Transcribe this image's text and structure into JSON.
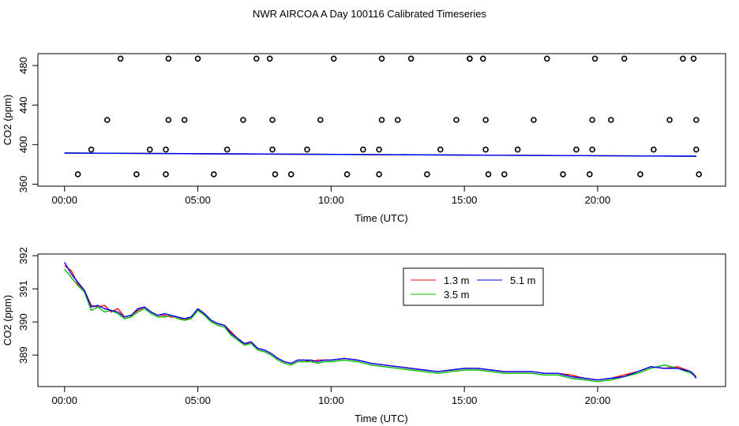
{
  "title": "NWR AIRCOA A  Day 100116  Calibrated Timeseries",
  "chart_data": [
    {
      "type": "scatter",
      "panel": "top",
      "xlabel": "Time (UTC)",
      "ylabel": "CO2 (ppm)",
      "xlim": [
        -1.0,
        24.8
      ],
      "ylim": [
        358,
        492
      ],
      "xticks": [
        0,
        5,
        10,
        15,
        20
      ],
      "xtick_labels": [
        "00:00",
        "05:00",
        "10:00",
        "15:00",
        "20:00"
      ],
      "yticks": [
        360,
        400,
        440,
        480
      ],
      "ytick_labels": [
        "360",
        "400",
        "440",
        "480"
      ],
      "calibration_points": {
        "marker": "open-circle",
        "points": [
          [
            0.5,
            370
          ],
          [
            1.0,
            395
          ],
          [
            1.6,
            425
          ],
          [
            2.1,
            487
          ],
          [
            2.7,
            370
          ],
          [
            3.2,
            395
          ],
          [
            3.8,
            370
          ],
          [
            3.8,
            395
          ],
          [
            3.9,
            425
          ],
          [
            3.9,
            487
          ],
          [
            4.5,
            425
          ],
          [
            5.0,
            487
          ],
          [
            5.6,
            370
          ],
          [
            6.1,
            395
          ],
          [
            6.7,
            425
          ],
          [
            7.2,
            487
          ],
          [
            7.7,
            487
          ],
          [
            7.8,
            425
          ],
          [
            7.8,
            395
          ],
          [
            7.9,
            370
          ],
          [
            8.5,
            370
          ],
          [
            9.1,
            395
          ],
          [
            9.6,
            425
          ],
          [
            10.1,
            487
          ],
          [
            10.6,
            370
          ],
          [
            11.2,
            395
          ],
          [
            11.8,
            370
          ],
          [
            11.8,
            395
          ],
          [
            11.9,
            425
          ],
          [
            11.9,
            487
          ],
          [
            12.5,
            425
          ],
          [
            13.0,
            487
          ],
          [
            13.6,
            370
          ],
          [
            14.1,
            395
          ],
          [
            14.7,
            425
          ],
          [
            15.2,
            487
          ],
          [
            15.2,
            487
          ],
          [
            15.7,
            487
          ],
          [
            15.8,
            425
          ],
          [
            15.8,
            395
          ],
          [
            15.9,
            370
          ],
          [
            16.5,
            370
          ],
          [
            17.0,
            395
          ],
          [
            17.6,
            425
          ],
          [
            18.1,
            487
          ],
          [
            18.7,
            370
          ],
          [
            19.2,
            395
          ],
          [
            19.7,
            370
          ],
          [
            19.8,
            395
          ],
          [
            19.8,
            425
          ],
          [
            19.9,
            487
          ],
          [
            20.5,
            425
          ],
          [
            21.0,
            487
          ],
          [
            21.6,
            370
          ],
          [
            22.1,
            395
          ],
          [
            22.7,
            425
          ],
          [
            23.2,
            487
          ],
          [
            23.6,
            487
          ],
          [
            23.7,
            425
          ],
          [
            23.7,
            395
          ],
          [
            23.8,
            370
          ]
        ]
      },
      "series": [
        {
          "name": "1.3 m",
          "color": "#ff0000",
          "x": [
            0,
            23.7
          ],
          "values": [
            391.5,
            388.3
          ]
        },
        {
          "name": "3.5 m",
          "color": "#00bb00",
          "x": [
            0,
            23.7
          ],
          "values": [
            391.5,
            388.3
          ]
        },
        {
          "name": "5.1 m",
          "color": "#0000ff",
          "x": [
            0,
            23.7
          ],
          "values": [
            391.5,
            388.3
          ]
        }
      ]
    },
    {
      "type": "line",
      "panel": "bottom",
      "xlabel": "Time (UTC)",
      "ylabel": "CO2 (ppm)",
      "xlim": [
        -1.0,
        24.8
      ],
      "ylim": [
        388.05,
        392.05
      ],
      "xticks": [
        0,
        5,
        10,
        15,
        20
      ],
      "xtick_labels": [
        "00:00",
        "05:00",
        "10:00",
        "15:00",
        "20:00"
      ],
      "yticks": [
        389,
        390,
        391,
        392
      ],
      "ytick_labels": [
        "389",
        "390",
        "391",
        "392"
      ],
      "legend": {
        "position": "top-right",
        "entries": [
          "1.3 m",
          "3.5 m",
          "5.1 m"
        ]
      },
      "x": [
        0,
        0.25,
        0.5,
        0.75,
        1,
        1.25,
        1.5,
        1.75,
        2,
        2.25,
        2.5,
        2.75,
        3,
        3.25,
        3.5,
        3.75,
        4,
        4.25,
        4.5,
        4.75,
        5,
        5.25,
        5.5,
        5.75,
        6,
        6.25,
        6.5,
        6.75,
        7,
        7.25,
        7.5,
        7.75,
        8,
        8.25,
        8.5,
        8.75,
        9,
        9.25,
        9.5,
        9.75,
        10,
        10.5,
        11,
        11.5,
        12,
        12.5,
        13,
        13.5,
        14,
        14.5,
        15,
        15.5,
        16,
        16.5,
        17,
        17.5,
        18,
        18.5,
        19,
        19.5,
        20,
        20.5,
        21,
        21.5,
        22,
        22.5,
        23,
        23.5,
        23.7
      ],
      "series": [
        {
          "name": "1.3 m",
          "color": "#ff0000",
          "values": [
            391.7,
            391.55,
            391.15,
            390.95,
            390.5,
            390.45,
            390.5,
            390.3,
            390.4,
            390.15,
            390.2,
            390.35,
            390.45,
            390.3,
            390.2,
            390.2,
            390.15,
            390.15,
            390.05,
            390.15,
            390.38,
            390.25,
            390.05,
            389.95,
            389.9,
            389.7,
            389.5,
            389.3,
            389.4,
            389.2,
            389.15,
            389.05,
            388.9,
            388.8,
            388.75,
            388.85,
            388.85,
            388.8,
            388.85,
            388.85,
            388.85,
            388.9,
            388.85,
            388.75,
            388.7,
            388.65,
            388.6,
            388.55,
            388.5,
            388.55,
            388.6,
            388.6,
            388.55,
            388.5,
            388.5,
            388.5,
            388.45,
            388.45,
            388.4,
            388.3,
            388.25,
            388.3,
            388.4,
            388.5,
            388.65,
            388.6,
            388.65,
            388.5,
            388.35
          ]
        },
        {
          "name": "3.5 m",
          "color": "#00bb00",
          "values": [
            391.6,
            391.35,
            391.1,
            390.9,
            390.35,
            390.45,
            390.3,
            390.35,
            390.25,
            390.1,
            390.15,
            390.3,
            390.4,
            390.25,
            390.15,
            390.15,
            390.2,
            390.1,
            390.05,
            390.1,
            390.35,
            390.2,
            390.0,
            389.9,
            389.85,
            389.6,
            389.45,
            389.3,
            389.35,
            389.15,
            389.1,
            389.0,
            388.85,
            388.75,
            388.7,
            388.8,
            388.8,
            388.8,
            388.75,
            388.8,
            388.8,
            388.85,
            388.8,
            388.7,
            388.65,
            388.6,
            388.55,
            388.5,
            388.45,
            388.5,
            388.55,
            388.55,
            388.5,
            388.45,
            388.45,
            388.45,
            388.4,
            388.4,
            388.3,
            388.25,
            388.2,
            388.25,
            388.35,
            388.45,
            388.6,
            388.7,
            388.6,
            388.45,
            388.35
          ]
        },
        {
          "name": "5.1 m",
          "color": "#0000ff",
          "values": [
            391.8,
            391.45,
            391.2,
            390.95,
            390.45,
            390.5,
            390.4,
            390.35,
            390.3,
            390.15,
            390.2,
            390.4,
            390.45,
            390.3,
            390.2,
            390.25,
            390.2,
            390.15,
            390.1,
            390.15,
            390.4,
            390.25,
            390.05,
            389.95,
            389.9,
            389.65,
            389.5,
            389.35,
            389.4,
            389.2,
            389.15,
            389.05,
            388.9,
            388.8,
            388.75,
            388.85,
            388.85,
            388.85,
            388.8,
            388.85,
            388.85,
            388.9,
            388.85,
            388.75,
            388.7,
            388.65,
            388.6,
            388.55,
            388.5,
            388.55,
            388.6,
            388.6,
            388.55,
            388.5,
            388.5,
            388.5,
            388.45,
            388.45,
            388.35,
            388.3,
            388.25,
            388.3,
            388.35,
            388.5,
            388.65,
            388.6,
            388.6,
            388.5,
            388.3
          ]
        }
      ]
    }
  ]
}
